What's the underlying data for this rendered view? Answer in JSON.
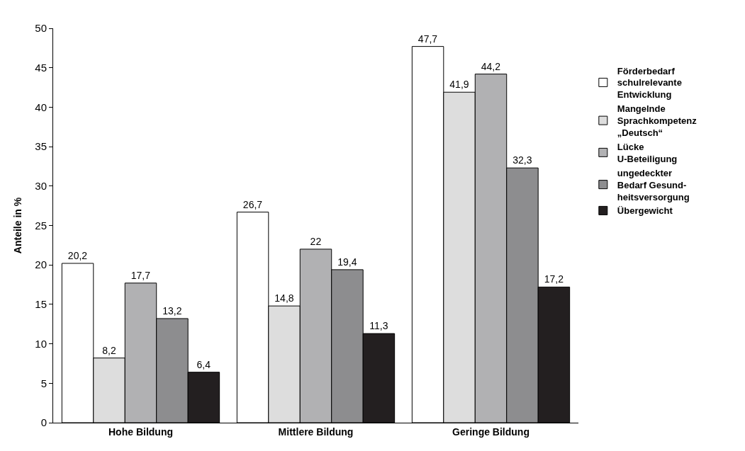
{
  "chart_data": {
    "type": "bar",
    "ylabel": "Anteile in %",
    "categories": [
      "Hohe Bildung",
      "Mittlere Bildung",
      "Geringe Bildung"
    ],
    "series": [
      {
        "name": "Förderbedarf\nschulrelevante\nEntwicklung",
        "color": "#ffffff",
        "values": [
          20.2,
          26.7,
          47.7
        ],
        "value_labels": [
          "20,2",
          "26,7",
          "47,7"
        ]
      },
      {
        "name": "Mangelnde\nSprachkompetenz\n„Deutsch“",
        "color": "#dddddd",
        "values": [
          8.2,
          14.8,
          41.9
        ],
        "value_labels": [
          "8,2",
          "14,8",
          "41,9"
        ]
      },
      {
        "name": "Lücke\nU-Beteiligung",
        "color": "#b1b1b3",
        "values": [
          17.7,
          22,
          44.2
        ],
        "value_labels": [
          "17,7",
          "22",
          "44,2"
        ]
      },
      {
        "name": "ungedeckter\nBedarf Gesund-\nheitsversorgung",
        "color": "#8d8d8f",
        "values": [
          13.2,
          19.4,
          32.3
        ],
        "value_labels": [
          "13,2",
          "19,4",
          "32,3"
        ]
      },
      {
        "name": "Übergewicht",
        "color": "#231f20",
        "values": [
          6.4,
          11.3,
          17.2
        ],
        "value_labels": [
          "6,4",
          "11,3",
          "17,2"
        ]
      }
    ],
    "ylim": [
      0,
      50
    ],
    "yticks": [
      0,
      5,
      10,
      15,
      20,
      25,
      30,
      35,
      40,
      45,
      50
    ],
    "legend": "right"
  }
}
